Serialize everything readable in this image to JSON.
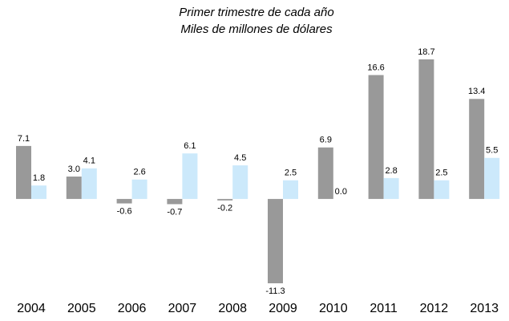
{
  "chart_data": {
    "type": "bar",
    "title": "Primer trimestre de cada año",
    "subtitle": "Miles de millones de dólares",
    "categories": [
      "2004",
      "2005",
      "2006",
      "2007",
      "2008",
      "2009",
      "2010",
      "2011",
      "2012",
      "2013"
    ],
    "series": [
      {
        "color": "#999999",
        "values": [
          7.1,
          3.0,
          -0.6,
          -0.7,
          -0.2,
          -11.3,
          6.9,
          16.6,
          18.7,
          13.4
        ],
        "value_labels": [
          "7.1",
          "3.0",
          "-0.6",
          "-0.7",
          "-0.2",
          "-11.3",
          "6.9",
          "16.6",
          "18.7",
          "13.4"
        ]
      },
      {
        "color": "#cce9fb",
        "values": [
          1.8,
          4.1,
          2.6,
          6.1,
          4.5,
          2.5,
          0.0,
          2.8,
          2.5,
          5.5
        ],
        "value_labels": [
          "1.8",
          "4.1",
          "2.6",
          "6.1",
          "4.5",
          "2.5",
          "0.0",
          "2.8",
          "2.5",
          "5.5"
        ]
      }
    ]
  }
}
